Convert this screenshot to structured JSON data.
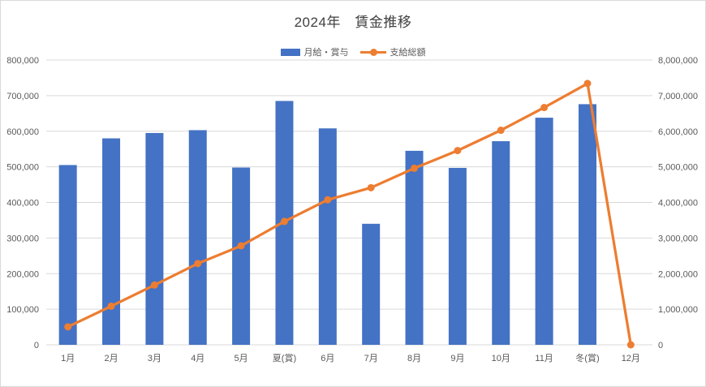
{
  "title": "2024年　賃金推移",
  "legend": {
    "items": [
      {
        "label": "月給・賞与",
        "marker": "bar-swatch",
        "color": "#4472C4"
      },
      {
        "label": "支給総額",
        "marker": "line-swatch",
        "color": "#ED7D31"
      }
    ]
  },
  "colors": {
    "bar": "#4472C4",
    "line": "#ED7D31",
    "gridline": "#D9D9D9",
    "axis_text": "#595959",
    "title_text": "#404040",
    "frame_border": "#D9D9D9",
    "background": "#FFFFFF"
  },
  "chart_data": {
    "type": "combo",
    "title": "2024年　賃金推移",
    "categories": [
      "1月",
      "2月",
      "3月",
      "4月",
      "5月",
      "夏(賞)",
      "6月",
      "7月",
      "8月",
      "9月",
      "10月",
      "11月",
      "冬(賞)",
      "12月"
    ],
    "series": [
      {
        "name": "月給・賞与",
        "type": "bar",
        "axis": "left",
        "color": "#4472C4",
        "values": [
          505000,
          580000,
          595000,
          603000,
          498000,
          685000,
          608000,
          340000,
          545000,
          497000,
          572000,
          638000,
          676000,
          null
        ]
      },
      {
        "name": "支給総額",
        "type": "line",
        "axis": "right",
        "color": "#ED7D31",
        "values": [
          505000,
          1085000,
          1680000,
          2283000,
          2781000,
          3466000,
          4074000,
          4414000,
          4959000,
          5456000,
          6028000,
          6666000,
          7342000,
          0
        ]
      }
    ],
    "left_axis": {
      "min": 0,
      "max": 800000,
      "step": 100000,
      "tick_labels": [
        "0",
        "100,000",
        "200,000",
        "300,000",
        "400,000",
        "500,000",
        "600,000",
        "700,000",
        "800,000"
      ]
    },
    "right_axis": {
      "min": 0,
      "max": 8000000,
      "step": 1000000,
      "tick_labels": [
        "0",
        "1,000,000",
        "2,000,000",
        "3,000,000",
        "4,000,000",
        "5,000,000",
        "6,000,000",
        "7,000,000",
        "8,000,000"
      ]
    },
    "grid": true,
    "legend_position": "top"
  }
}
